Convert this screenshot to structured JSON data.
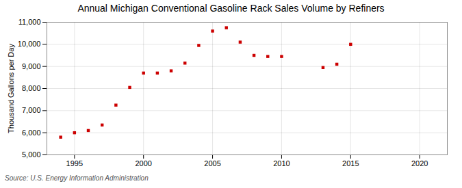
{
  "chart_data": {
    "type": "scatter",
    "title": "Annual Michigan Conventional Gasoline Rack Sales Volume by Refiners",
    "ylabel": "Thousand Gallons per Day",
    "source": "Source: U.S. Energy Information Administration",
    "x": [
      1994,
      1995,
      1996,
      1997,
      1998,
      1999,
      2000,
      2001,
      2002,
      2003,
      2004,
      2005,
      2006,
      2007,
      2008,
      2009,
      2010,
      2013,
      2014,
      2015
    ],
    "values": [
      5800,
      6000,
      6100,
      6350,
      7250,
      8050,
      8700,
      8700,
      8800,
      9150,
      9950,
      10600,
      10750,
      10100,
      9500,
      9450,
      9450,
      8950,
      9100,
      10000
    ],
    "color": "#cc0000",
    "marker": "square",
    "xlim": [
      1993,
      2022
    ],
    "ylim": [
      5000,
      11000
    ],
    "xticks": [
      1995,
      2000,
      2005,
      2010,
      2015,
      2020
    ],
    "yticks": [
      {
        "value": 5000,
        "label": "5,000"
      },
      {
        "value": 6000,
        "label": "6,000"
      },
      {
        "value": 7000,
        "label": "7,000"
      },
      {
        "value": 8000,
        "label": "8,000"
      },
      {
        "value": 9000,
        "label": "9,000"
      },
      {
        "value": 10000,
        "label": "10,000"
      },
      {
        "value": 11000,
        "label": "11,000"
      }
    ],
    "grid": true
  }
}
